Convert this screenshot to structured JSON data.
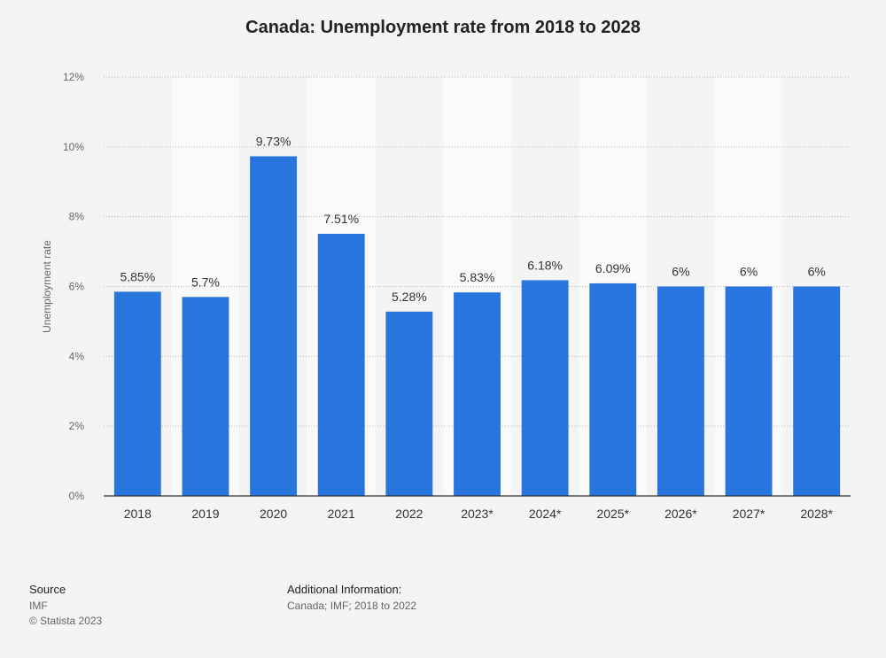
{
  "chart_data": {
    "type": "bar",
    "title": "Canada: Unemployment rate from 2018 to 2028",
    "xlabel": "",
    "ylabel": "Unemployment rate",
    "categories": [
      "2018",
      "2019",
      "2020",
      "2021",
      "2022",
      "2023*",
      "2024*",
      "2025*",
      "2026*",
      "2027*",
      "2028*"
    ],
    "values": [
      5.85,
      5.7,
      9.73,
      7.51,
      5.28,
      5.83,
      6.18,
      6.09,
      6,
      6,
      6
    ],
    "value_labels": [
      "5.85%",
      "5.7%",
      "9.73%",
      "7.51%",
      "5.28%",
      "5.83%",
      "6.18%",
      "6.09%",
      "6%",
      "6%",
      "6%"
    ],
    "ylim": [
      0,
      12
    ],
    "yticks": [
      0,
      2,
      4,
      6,
      8,
      10,
      12
    ],
    "ytick_labels": [
      "0%",
      "2%",
      "4%",
      "6%",
      "8%",
      "10%",
      "12%"
    ],
    "grid": true,
    "bar_color": "#2876dd"
  },
  "footer": {
    "source_heading": "Source",
    "source_lines": [
      "IMF",
      "© Statista 2023"
    ],
    "info_heading": "Additional Information:",
    "info_lines": [
      "Canada; IMF; 2018 to 2022"
    ]
  }
}
